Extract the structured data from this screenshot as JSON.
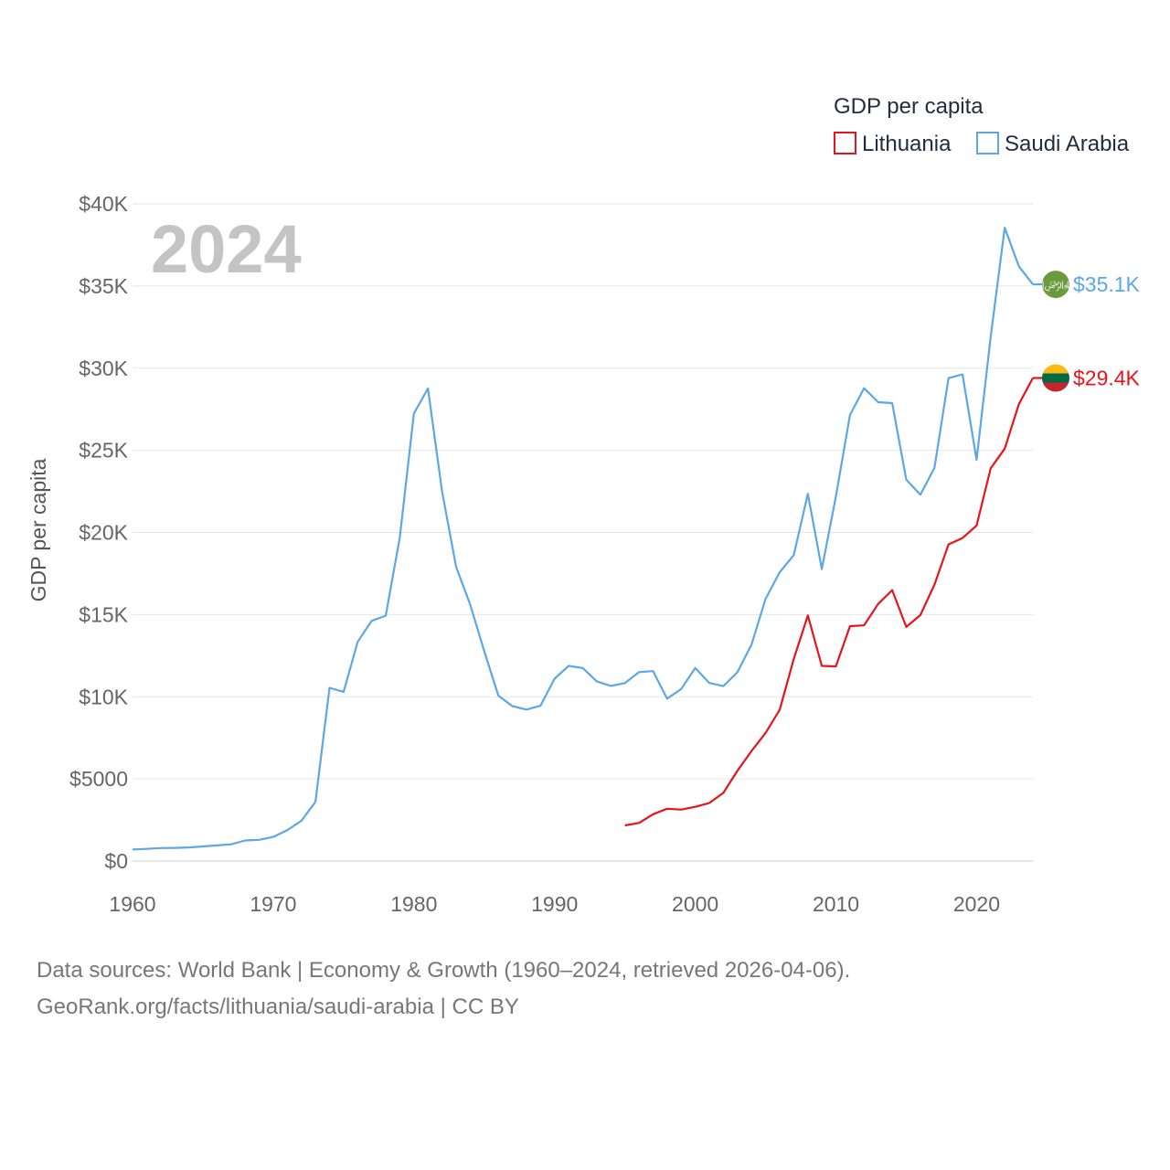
{
  "chart_data": {
    "type": "line",
    "year_label": "2024",
    "ylabel": "GDP per capita",
    "legend_title": "GDP per capita",
    "legend_position": "top-right",
    "xlim": [
      1960,
      2024
    ],
    "ylim": [
      0,
      40000
    ],
    "x_ticks": [
      {
        "value": 1960,
        "label": "1960"
      },
      {
        "value": 1970,
        "label": "1970"
      },
      {
        "value": 1980,
        "label": "1980"
      },
      {
        "value": 1990,
        "label": "1990"
      },
      {
        "value": 2000,
        "label": "2000"
      },
      {
        "value": 2010,
        "label": "2010"
      },
      {
        "value": 2020,
        "label": "2020"
      }
    ],
    "y_ticks": [
      {
        "value": 0,
        "label": "$0"
      },
      {
        "value": 5000,
        "label": "$5000"
      },
      {
        "value": 10000,
        "label": "$10K"
      },
      {
        "value": 15000,
        "label": "$15K"
      },
      {
        "value": 20000,
        "label": "$20K"
      },
      {
        "value": 25000,
        "label": "$25K"
      },
      {
        "value": 30000,
        "label": "$30K"
      },
      {
        "value": 35000,
        "label": "$35K"
      },
      {
        "value": 40000,
        "label": "$40K"
      }
    ],
    "series": [
      {
        "name": "Lithuania",
        "color": "#e8141b",
        "end_label": "$29.4K",
        "flag": [
          "#fdb913",
          "#006a44",
          "#c1272d"
        ],
        "x": [
          1995,
          1996,
          1997,
          1998,
          1999,
          2000,
          2001,
          2002,
          2003,
          2004,
          2005,
          2006,
          2007,
          2008,
          2009,
          2010,
          2011,
          2012,
          2013,
          2014,
          2015,
          2016,
          2017,
          2018,
          2019,
          2020,
          2021,
          2022,
          2023,
          2024
        ],
        "values": [
          2170,
          2320,
          2850,
          3180,
          3130,
          3300,
          3530,
          4150,
          5500,
          6700,
          7800,
          9200,
          12300,
          14950,
          11880,
          11850,
          14300,
          14340,
          15650,
          16490,
          14250,
          14970,
          16820,
          19270,
          19660,
          20420,
          23900,
          25100,
          27800,
          29400
        ]
      },
      {
        "name": "Saudi Arabia",
        "color": "#5ca7e6",
        "end_label": "$35.1K",
        "flag": [
          "#6a9a3c"
        ],
        "flag_text": "﷽",
        "x": [
          1960,
          1961,
          1962,
          1963,
          1964,
          1965,
          1966,
          1967,
          1968,
          1969,
          1970,
          1971,
          1972,
          1973,
          1974,
          1975,
          1976,
          1977,
          1978,
          1979,
          1980,
          1981,
          1982,
          1983,
          1984,
          1985,
          1986,
          1987,
          1988,
          1989,
          1990,
          1991,
          1992,
          1993,
          1994,
          1995,
          1996,
          1997,
          1998,
          1999,
          2000,
          2001,
          2002,
          2003,
          2004,
          2005,
          2006,
          2007,
          2008,
          2009,
          2010,
          2011,
          2012,
          2013,
          2014,
          2015,
          2016,
          2017,
          2018,
          2019,
          2020,
          2021,
          2022,
          2023,
          2024
        ],
        "values": [
          700,
          740,
          790,
          800,
          830,
          890,
          950,
          1020,
          1250,
          1290,
          1470,
          1880,
          2450,
          3600,
          10540,
          10300,
          13340,
          14620,
          14930,
          19700,
          27240,
          28760,
          22510,
          17900,
          15610,
          12770,
          10070,
          9430,
          9220,
          9450,
          11100,
          11880,
          11750,
          10940,
          10660,
          10830,
          11500,
          11560,
          9880,
          10470,
          11750,
          10840,
          10650,
          11500,
          13180,
          15960,
          17580,
          18620,
          22350,
          17770,
          22200,
          27150,
          28780,
          27930,
          27870,
          23210,
          22300,
          23930,
          29390,
          29620,
          24420,
          31900,
          38550,
          36200,
          35100
        ]
      }
    ]
  },
  "footer": {
    "line1": "Data sources: World Bank | Economy & Growth (1960–2024, retrieved 2026-04-06).",
    "line2": "GeoRank.org/facts/lithuania/saudi-arabia | CC BY"
  }
}
